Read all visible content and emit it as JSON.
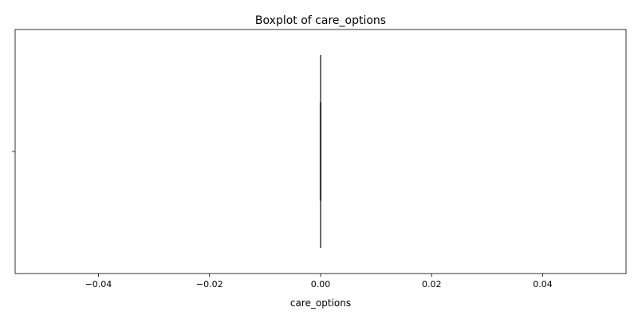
{
  "chart_data": {
    "type": "boxplot",
    "title": "Boxplot of care_options",
    "xlabel": "care_options",
    "ylabel": "",
    "xlim": [
      -0.055,
      0.055
    ],
    "x_ticks": [
      -0.04,
      -0.02,
      0.0,
      0.02,
      0.04
    ],
    "x_tick_labels": [
      "−0.04",
      "−0.02",
      "0.00",
      "0.02",
      "0.04"
    ],
    "y_tick_labels": [
      ""
    ],
    "grid": false,
    "boxes": [
      {
        "min": 0.0,
        "q1": 0.0,
        "median": 0.0,
        "q3": 0.0,
        "max": 0.0
      }
    ],
    "colors": {
      "box": "#3a3a3a",
      "frame": "#000000"
    }
  }
}
